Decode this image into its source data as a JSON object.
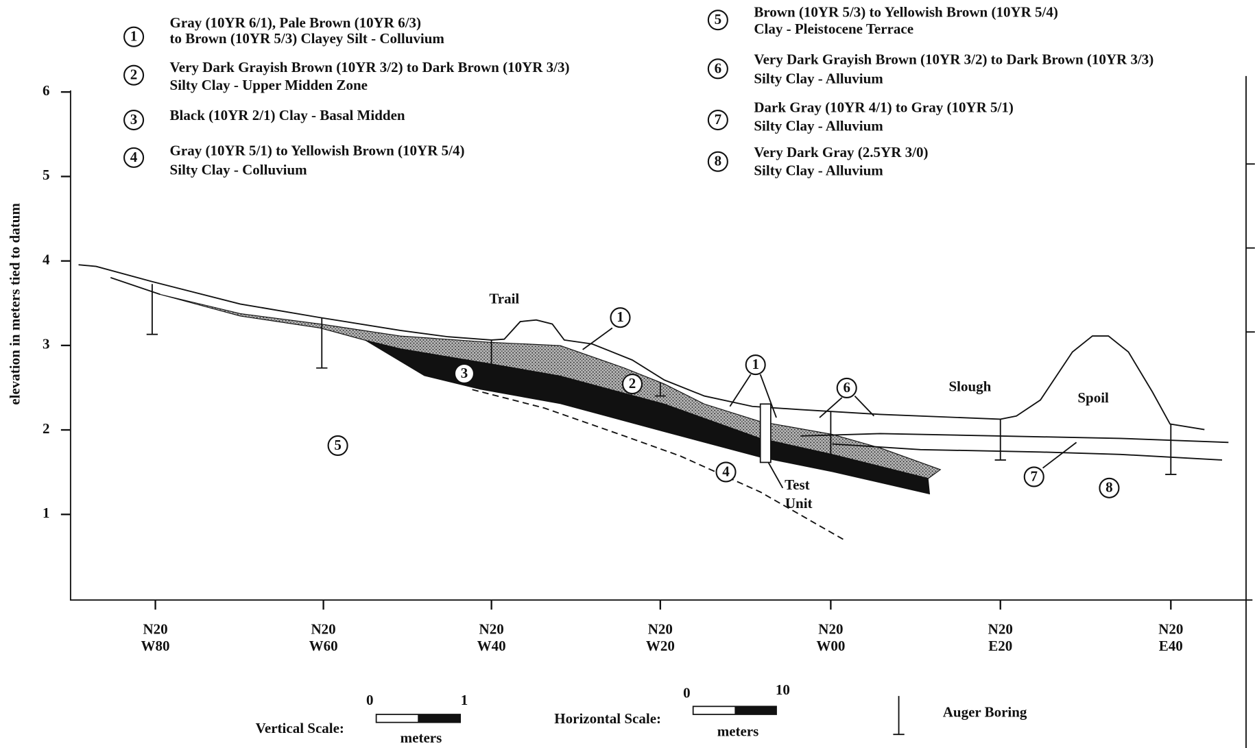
{
  "legend": {
    "items": [
      {
        "number": "1",
        "lines": [
          "Gray (10YR 6/1), Pale Brown (10YR 6/3)",
          "to Brown (10YR 5/3) Clayey Silt - Colluvium"
        ]
      },
      {
        "number": "2",
        "lines": [
          "Very Dark Grayish Brown (10YR 3/2) to Dark Brown (10YR 3/3)",
          "Silty Clay - Upper Midden Zone"
        ]
      },
      {
        "number": "3",
        "lines": [
          "Black (10YR 2/1) Clay - Basal Midden"
        ]
      },
      {
        "number": "4",
        "lines": [
          "Gray (10YR 5/1) to Yellowish Brown (10YR 5/4)",
          "Silty Clay - Colluvium"
        ]
      },
      {
        "number": "5",
        "lines": [
          "Brown (10YR 5/3) to Yellowish Brown (10YR 5/4)",
          "Clay - Pleistocene Terrace"
        ]
      },
      {
        "number": "6",
        "lines": [
          "Very Dark Grayish Brown (10YR 3/2) to Dark Brown (10YR 3/3)",
          "Silty Clay - Alluvium"
        ]
      },
      {
        "number": "7",
        "lines": [
          "Dark Gray (10YR 4/1) to Gray (10YR 5/1)",
          "Silty Clay - Alluvium"
        ]
      },
      {
        "number": "8",
        "lines": [
          "Very Dark Gray (2.5YR 3/0)",
          "Silty Clay - Alluvium"
        ]
      }
    ]
  },
  "axis": {
    "y_label": "elevation in meters tied to datum",
    "y_ticks": [
      "1",
      "2",
      "3",
      "4",
      "5",
      "6"
    ],
    "x_ticks": [
      {
        "lines": [
          "N20",
          "W80"
        ]
      },
      {
        "lines": [
          "N20",
          "W60"
        ]
      },
      {
        "lines": [
          "N20",
          "W40"
        ]
      },
      {
        "lines": [
          "N20",
          "W20"
        ]
      },
      {
        "lines": [
          "N20",
          "W00"
        ]
      },
      {
        "lines": [
          "N20",
          "E20"
        ]
      },
      {
        "lines": [
          "N20",
          "E40"
        ]
      }
    ]
  },
  "annotations": {
    "trail": "Trail",
    "slough": "Slough",
    "spoil": "Spoil",
    "test_unit": [
      "Test",
      "Unit"
    ],
    "units": [
      "1",
      "1",
      "6",
      "3",
      "2",
      "5",
      "4",
      "7",
      "8"
    ]
  },
  "scale": {
    "vertical": {
      "label": "Vertical Scale:",
      "min": "0",
      "max": "1",
      "unit": "meters"
    },
    "horizontal": {
      "label": "Horizontal Scale:",
      "min": "0",
      "max": "10",
      "unit": "meters"
    },
    "auger": "Auger Boring"
  }
}
